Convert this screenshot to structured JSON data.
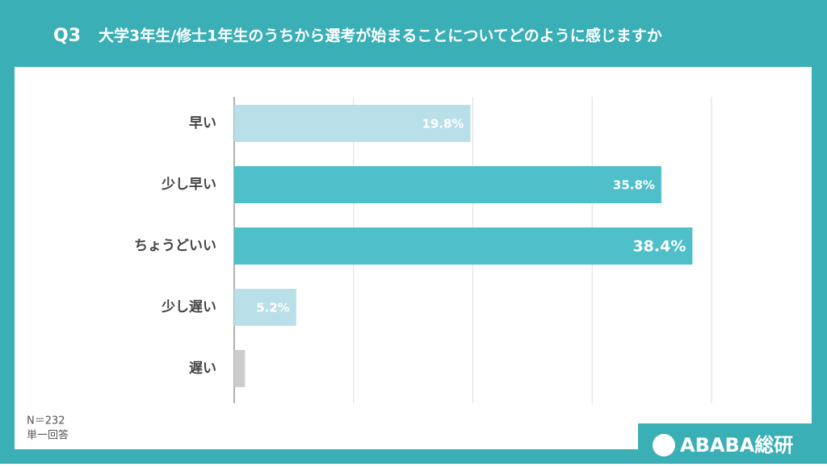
{
  "chart_data": {
    "type": "hbar",
    "question": "Q3",
    "title": "大学3年生/修士1年生のうちから選考が始まることについてどのように感じますか",
    "categories": [
      "早い",
      "少し早い",
      "ちょうどいい",
      "少し遅い",
      "遅い"
    ],
    "values": [
      19.8,
      35.8,
      38.4,
      5.2,
      0.9
    ],
    "value_labels": [
      "19.8%",
      "35.8%",
      "38.4%",
      "5.2%",
      null
    ],
    "colors": [
      "#b9dfe9",
      "#4fbfca",
      "#4fbfca",
      "#b9dfe9",
      "#cccccc"
    ],
    "xlim": [
      0,
      40
    ],
    "xticks": [
      0,
      10,
      20,
      30,
      40
    ],
    "grid": true,
    "notes": [
      "N＝232",
      "単一回答"
    ],
    "brand": "ABABA総研"
  }
}
